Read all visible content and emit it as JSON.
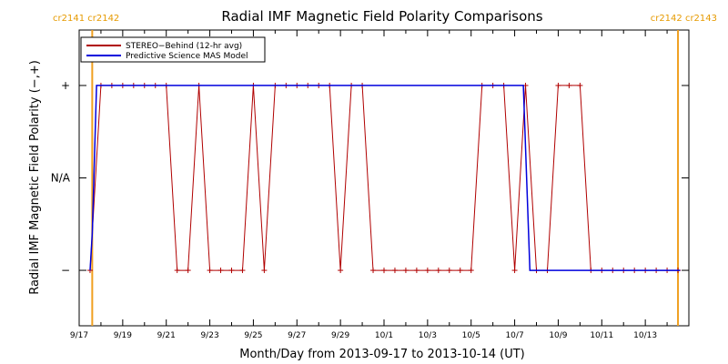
{
  "chart_data": {
    "type": "line",
    "title": "Radial IMF Magnetic Field Polarity Comparisons",
    "xlabel": "Month/Day from 2013-09-17 to 2013-10-14 (UT)",
    "ylabel": "Radial IMF Magnetic Field Polarity (−,+)",
    "x_unit": "days",
    "xlim": [
      0,
      28
    ],
    "ylim": [
      -1.6,
      1.6
    ],
    "x_ticks": [
      {
        "x": 0,
        "label": "9/17"
      },
      {
        "x": 2,
        "label": "9/19"
      },
      {
        "x": 4,
        "label": "9/21"
      },
      {
        "x": 6,
        "label": "9/23"
      },
      {
        "x": 8,
        "label": "9/25"
      },
      {
        "x": 10,
        "label": "9/27"
      },
      {
        "x": 12,
        "label": "9/29"
      },
      {
        "x": 14,
        "label": "10/1"
      },
      {
        "x": 16,
        "label": "10/3"
      },
      {
        "x": 18,
        "label": "10/5"
      },
      {
        "x": 20,
        "label": "10/7"
      },
      {
        "x": 22,
        "label": "10/9"
      },
      {
        "x": 24,
        "label": "10/11"
      },
      {
        "x": 26,
        "label": "10/13"
      }
    ],
    "y_ticks": [
      {
        "y": 1,
        "label": "+"
      },
      {
        "y": 0,
        "label": "N/A"
      },
      {
        "y": -1,
        "label": "−"
      }
    ],
    "legend_position": "top-left",
    "carrington_markers": [
      {
        "x": 0.6,
        "label": "cr2141 cr2142",
        "side": "left"
      },
      {
        "x": 27.5,
        "label": "cr2142 cr2143",
        "side": "right"
      }
    ],
    "series": [
      {
        "name": "STEREO−Behind (12-hr avg)",
        "color": "#b00000",
        "markers": true,
        "x": [
          0.5,
          1.0,
          1.5,
          2.0,
          2.5,
          3.0,
          3.5,
          4.0,
          4.5,
          5.0,
          5.5,
          6.0,
          6.5,
          7.0,
          7.5,
          8.0,
          8.5,
          9.0,
          9.5,
          10.0,
          10.5,
          11.0,
          11.5,
          12.0,
          12.5,
          13.0,
          13.5,
          14.0,
          14.5,
          15.0,
          15.5,
          16.0,
          16.5,
          17.0,
          17.5,
          18.0,
          18.5,
          19.0,
          19.5,
          20.0,
          20.5,
          21.0,
          21.5,
          22.0,
          22.5,
          23.0,
          23.5,
          24.0,
          24.5,
          25.0,
          25.5,
          26.0,
          26.5,
          27.0,
          27.5
        ],
        "values": [
          -1,
          1,
          1,
          1,
          1,
          1,
          1,
          1,
          -1,
          -1,
          1,
          -1,
          -1,
          -1,
          -1,
          1,
          -1,
          1,
          1,
          1,
          1,
          1,
          1,
          -1,
          1,
          1,
          -1,
          -1,
          -1,
          -1,
          -1,
          -1,
          -1,
          -1,
          -1,
          -1,
          1,
          1,
          1,
          -1,
          1,
          -1,
          -1,
          1,
          1,
          1,
          -1,
          -1,
          -1,
          -1,
          -1,
          -1,
          -1,
          -1,
          -1
        ]
      },
      {
        "name": "Predictive Science MAS Model",
        "color": "#0000dd",
        "markers": false,
        "x": [
          0.5,
          0.6,
          0.8,
          20.4,
          20.7,
          27.6
        ],
        "values": [
          -1,
          -0.6,
          1,
          1,
          -1,
          -1
        ]
      }
    ]
  }
}
